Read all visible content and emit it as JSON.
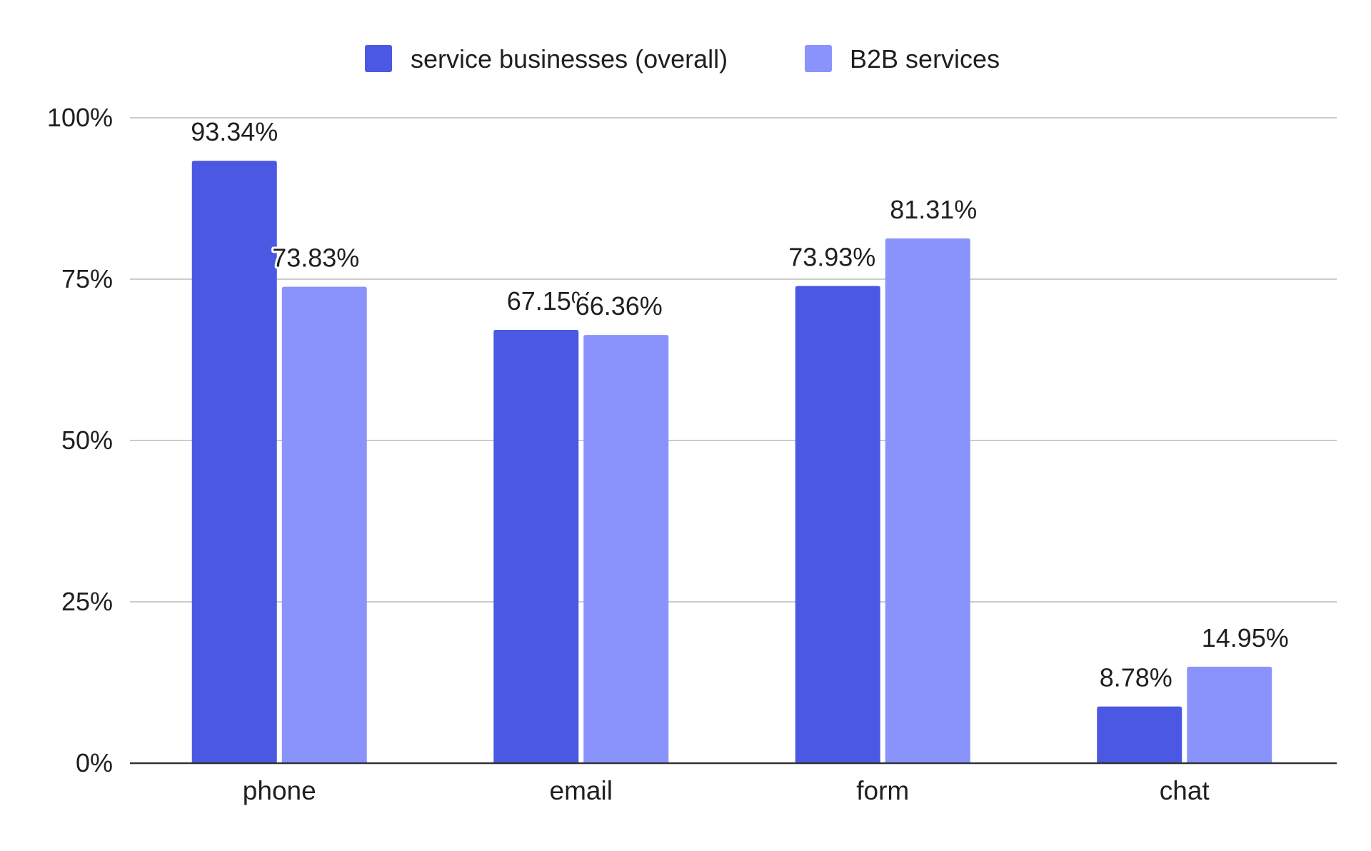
{
  "chart_data": {
    "type": "bar",
    "title": "",
    "xlabel": "",
    "ylabel": "",
    "categories": [
      "phone",
      "email",
      "form",
      "chat"
    ],
    "series": [
      {
        "name": "service businesses (overall)",
        "color": "#4a58e3",
        "values": [
          93.34,
          67.15,
          73.93,
          8.78
        ],
        "labels": [
          "93.34%",
          "67.15%",
          "73.93%",
          "8.78%"
        ]
      },
      {
        "name": "B2B services",
        "color": "#8a93fb",
        "values": [
          73.83,
          66.36,
          81.31,
          14.95
        ],
        "labels": [
          "73.83%",
          "66.36%",
          "81.31%",
          "14.95%"
        ]
      }
    ],
    "ylim": [
      0,
      100
    ],
    "yticks": [
      0,
      25,
      50,
      75,
      100
    ],
    "ytick_labels": [
      "0%",
      "25%",
      "50%",
      "75%",
      "100%"
    ],
    "grid": true,
    "legend_position": "top-center"
  }
}
